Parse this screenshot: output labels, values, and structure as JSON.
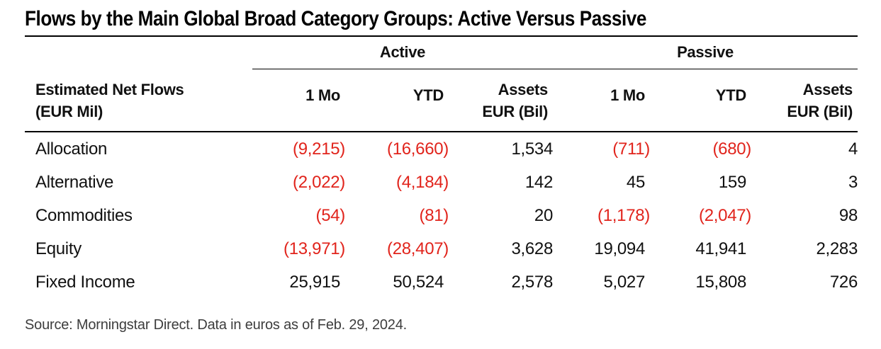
{
  "title": "Flows by the Main Global Broad Category Groups: Active Versus Passive",
  "colors": {
    "negative_value": "#e1241c",
    "text": "#111111",
    "rule": "#000000",
    "source_text": "#3d3d3d"
  },
  "table": {
    "row_header_line1": "Estimated Net Flows",
    "row_header_line2": "(EUR Mil)",
    "group_active": "Active",
    "group_passive": "Passive",
    "col_1mo": "1 Mo",
    "col_ytd": "YTD",
    "col_assets_line1": "Assets",
    "col_assets_line2": "EUR (Bil)",
    "rows": [
      {
        "category": "Allocation",
        "active_1mo": "(9,215)",
        "active_ytd": "(16,660)",
        "active_assets": "1,534",
        "passive_1mo": "(711)",
        "passive_ytd": "(680)",
        "passive_assets": "4"
      },
      {
        "category": "Alternative",
        "active_1mo": "(2,022)",
        "active_ytd": "(4,184)",
        "active_assets": "142",
        "passive_1mo": "45",
        "passive_ytd": "159",
        "passive_assets": "3"
      },
      {
        "category": "Commodities",
        "active_1mo": "(54)",
        "active_ytd": "(81)",
        "active_assets": "20",
        "passive_1mo": "(1,178)",
        "passive_ytd": "(2,047)",
        "passive_assets": "98"
      },
      {
        "category": "Equity",
        "active_1mo": "(13,971)",
        "active_ytd": "(28,407)",
        "active_assets": "3,628",
        "passive_1mo": "19,094",
        "passive_ytd": "41,941",
        "passive_assets": "2,283"
      },
      {
        "category": "Fixed Income",
        "active_1mo": "25,915",
        "active_ytd": "50,524",
        "active_assets": "2,578",
        "passive_1mo": "5,027",
        "passive_ytd": "15,808",
        "passive_assets": "726"
      }
    ]
  },
  "source": "Source: Morningstar Direct. Data in euros as of Feb. 29, 2024."
}
